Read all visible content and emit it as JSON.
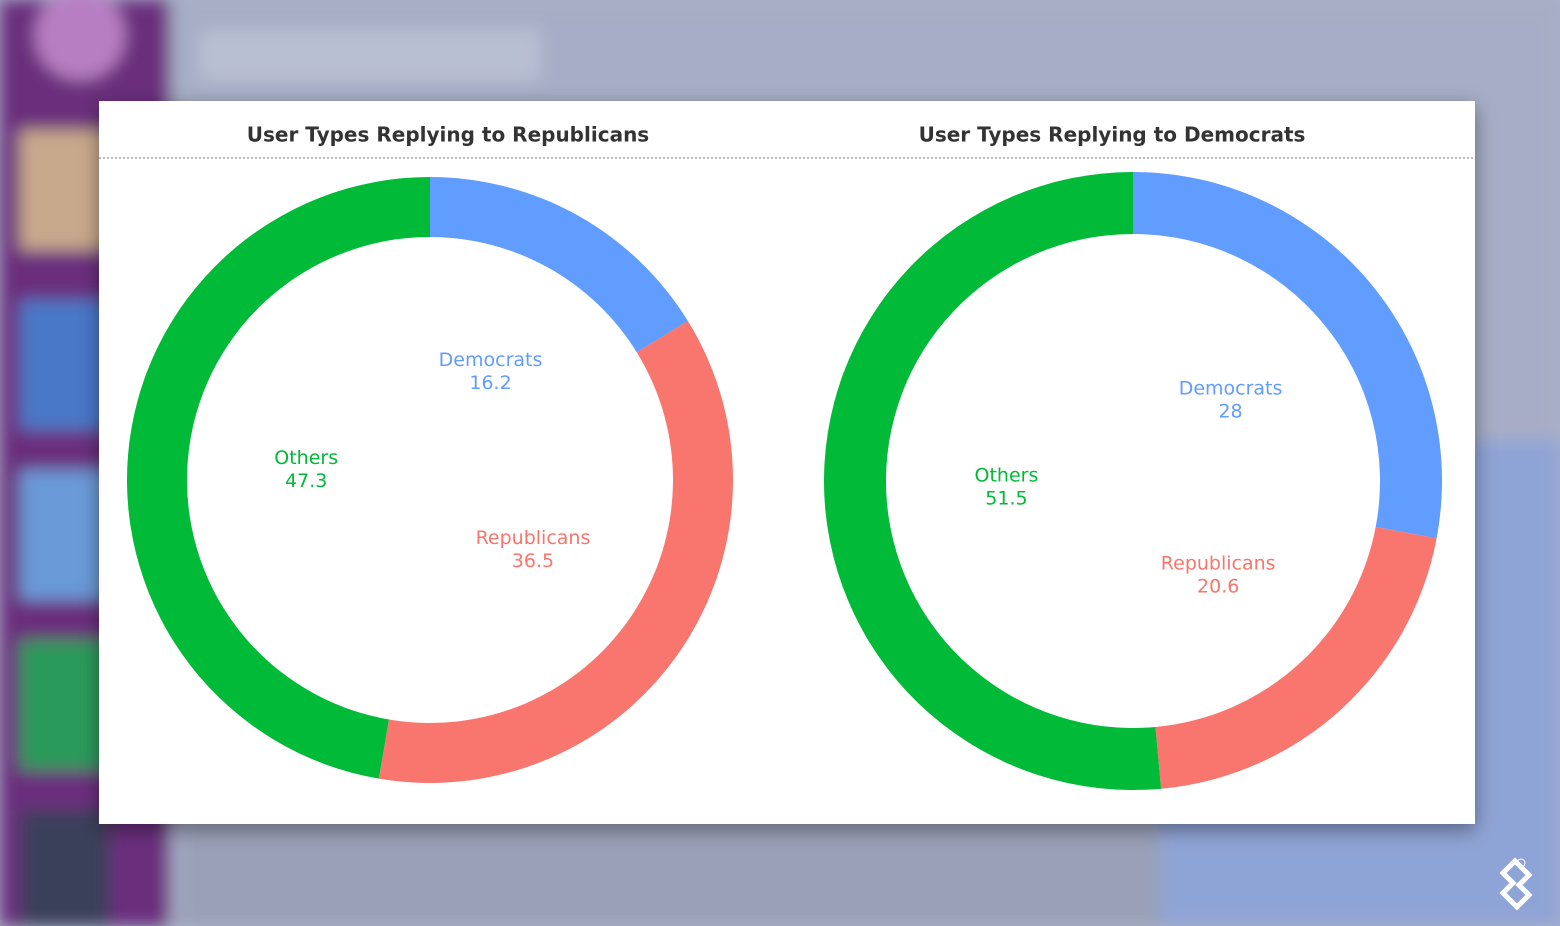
{
  "chart_data": [
    {
      "type": "donut",
      "title": "User Types Replying to Republicans",
      "categories": [
        "Democrats",
        "Republicans",
        "Others"
      ],
      "values": [
        16.2,
        36.5,
        47.3
      ],
      "colors": [
        "#619cff",
        "#f8766d",
        "#00ba38"
      ]
    },
    {
      "type": "donut",
      "title": "User Types Replying to Democrats",
      "categories": [
        "Democrats",
        "Republicans",
        "Others"
      ],
      "values": [
        28,
        20.6,
        51.5
      ],
      "colors": [
        "#619cff",
        "#f8766d",
        "#00ba38"
      ]
    }
  ]
}
